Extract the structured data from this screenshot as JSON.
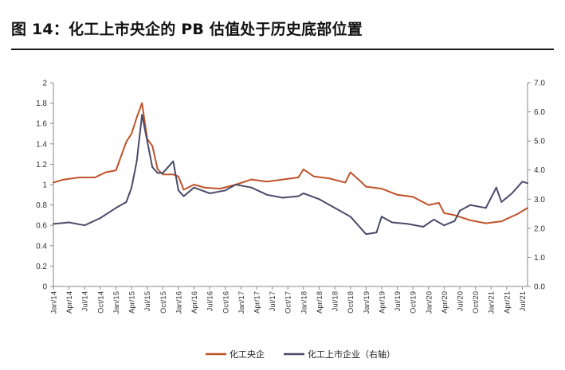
{
  "figure": {
    "title": "图 14：化工上市央企的 PB 估值处于历史底部位置"
  },
  "chart_data": {
    "type": "line",
    "colors": {
      "left_series": "#c0522a",
      "right_series": "#4b4b6b",
      "axis": "#888888"
    },
    "y_left": {
      "min": 0,
      "max": 2,
      "ticks": [
        "0",
        "0.2",
        "0.4",
        "0.6",
        "0.8",
        "1",
        "1.2",
        "1.4",
        "1.6",
        "1.8",
        "2"
      ]
    },
    "y_right": {
      "min": 0,
      "max": 7,
      "ticks": [
        "0.0",
        "1.0",
        "2.0",
        "3.0",
        "4.0",
        "5.0",
        "6.0",
        "7.0"
      ]
    },
    "x_ticks": [
      "Jan/14",
      "Apr/14",
      "Jul/14",
      "Oct/14",
      "Jan/15",
      "Apr/15",
      "Jul/15",
      "Oct/15",
      "Jan/16",
      "Apr/16",
      "Jul/16",
      "Oct/16",
      "Jan/17",
      "Apr/17",
      "Jul/17",
      "Oct/17",
      "Jan/18",
      "Apr/18",
      "Jul/18",
      "Oct/18",
      "Jan/19",
      "Apr/19",
      "Jul/19",
      "Oct/19",
      "Jan/20",
      "Apr/20",
      "Jul/20",
      "Oct/20",
      "Jan/21",
      "Apr/21",
      "Jul/21"
    ],
    "x_end": "2021-08",
    "series": [
      {
        "name": "化工央企",
        "axis": "left",
        "x": [
          "2014-01",
          "2014-03",
          "2014-06",
          "2014-09",
          "2014-11",
          "2015-01",
          "2015-03",
          "2015-04",
          "2015-05",
          "2015-06",
          "2015-07",
          "2015-08",
          "2015-09",
          "2015-10",
          "2015-12",
          "2016-01",
          "2016-02",
          "2016-04",
          "2016-06",
          "2016-09",
          "2016-12",
          "2017-03",
          "2017-06",
          "2017-09",
          "2017-12",
          "2018-01",
          "2018-03",
          "2018-06",
          "2018-09",
          "2018-10",
          "2018-12",
          "2019-01",
          "2019-04",
          "2019-07",
          "2019-10",
          "2020-01",
          "2020-03",
          "2020-04",
          "2020-06",
          "2020-09",
          "2020-12",
          "2021-03",
          "2021-06",
          "2021-08"
        ],
        "values": [
          1.02,
          1.05,
          1.07,
          1.07,
          1.12,
          1.14,
          1.42,
          1.5,
          1.66,
          1.8,
          1.45,
          1.38,
          1.15,
          1.1,
          1.1,
          1.08,
          0.95,
          1.0,
          0.97,
          0.96,
          1.0,
          1.05,
          1.03,
          1.05,
          1.07,
          1.15,
          1.08,
          1.06,
          1.02,
          1.12,
          1.03,
          0.98,
          0.96,
          0.9,
          0.88,
          0.8,
          0.82,
          0.72,
          0.7,
          0.65,
          0.62,
          0.64,
          0.71,
          0.77
        ]
      },
      {
        "name": "化工上市企业（右轴）",
        "axis": "right",
        "x": [
          "2014-01",
          "2014-04",
          "2014-07",
          "2014-10",
          "2015-01",
          "2015-03",
          "2015-04",
          "2015-05",
          "2015-06",
          "2015-07",
          "2015-08",
          "2015-09",
          "2015-10",
          "2015-12",
          "2016-01",
          "2016-02",
          "2016-04",
          "2016-07",
          "2016-10",
          "2016-12",
          "2017-03",
          "2017-06",
          "2017-09",
          "2017-12",
          "2018-01",
          "2018-04",
          "2018-07",
          "2018-10",
          "2019-01",
          "2019-03",
          "2019-04",
          "2019-06",
          "2019-09",
          "2019-12",
          "2020-02",
          "2020-04",
          "2020-06",
          "2020-07",
          "2020-09",
          "2020-12",
          "2021-02",
          "2021-03",
          "2021-05",
          "2021-07",
          "2021-08"
        ],
        "values": [
          2.15,
          2.2,
          2.1,
          2.35,
          2.7,
          2.9,
          3.4,
          4.3,
          5.9,
          5.0,
          4.1,
          3.9,
          3.9,
          4.3,
          3.3,
          3.1,
          3.4,
          3.2,
          3.3,
          3.5,
          3.4,
          3.15,
          3.05,
          3.1,
          3.2,
          3.0,
          2.7,
          2.4,
          1.8,
          1.85,
          2.4,
          2.2,
          2.15,
          2.05,
          2.3,
          2.1,
          2.25,
          2.6,
          2.8,
          2.7,
          3.4,
          2.9,
          3.2,
          3.6,
          3.55
        ]
      }
    ]
  }
}
